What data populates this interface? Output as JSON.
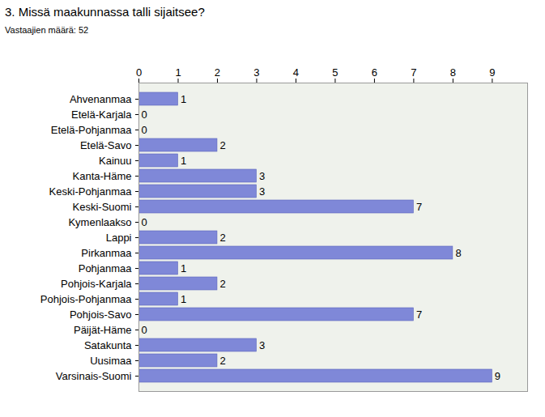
{
  "chart_data": {
    "type": "bar",
    "orientation": "horizontal",
    "title": "3. Missä maakunnassa talli sijaitsee?",
    "subtitle": "Vastaajien määrä: 52",
    "categories": [
      "Ahvenanmaa",
      "Etelä-Karjala",
      "Etelä-Pohjanmaa",
      "Etelä-Savo",
      "Kainuu",
      "Kanta-Häme",
      "Keski-Pohjanmaa",
      "Keski-Suomi",
      "Kymenlaakso",
      "Lappi",
      "Pirkanmaa",
      "Pohjanmaa",
      "Pohjois-Karjala",
      "Pohjois-Pohjanmaa",
      "Pohjois-Savo",
      "Päijät-Häme",
      "Satakunta",
      "Uusimaa",
      "Varsinais-Suomi"
    ],
    "values": [
      1,
      0,
      0,
      2,
      1,
      3,
      3,
      7,
      0,
      2,
      8,
      1,
      2,
      1,
      7,
      0,
      3,
      2,
      9
    ],
    "color": "#7f88d8",
    "xlim": [
      0,
      9.9
    ],
    "xticks": [
      0,
      1,
      2,
      3,
      4,
      5,
      6,
      7,
      8,
      9
    ],
    "grid": false,
    "data_labels": true
  }
}
